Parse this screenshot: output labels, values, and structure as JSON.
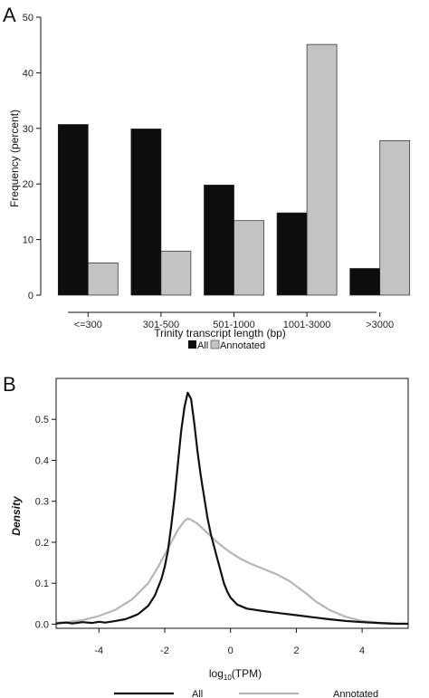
{
  "chart_data": [
    {
      "panel": "A",
      "type": "bar",
      "xlabel": "Trinity transcript length (bp)",
      "ylabel": "Frequency (percent)",
      "ylim": [
        0,
        50
      ],
      "yticks": [
        0,
        10,
        20,
        30,
        40,
        50
      ],
      "categories": [
        "<=300",
        "301-500",
        "501-1000",
        "1001-3000",
        ">3000"
      ],
      "series": [
        {
          "name": "All",
          "color": "#0d0d0d",
          "values": [
            30.7,
            29.9,
            19.8,
            14.8,
            4.8
          ]
        },
        {
          "name": "Annotated",
          "color": "#c2c4c4",
          "values": [
            5.8,
            7.9,
            13.4,
            45.1,
            27.8
          ]
        }
      ],
      "legend": "bottom"
    },
    {
      "panel": "B",
      "type": "line",
      "xlabel": "log10(TPM)",
      "ylabel": "Density",
      "xlim": [
        -5.3,
        5.4
      ],
      "ylim": [
        -0.01,
        0.6
      ],
      "xticks": [
        -4,
        -2,
        0,
        2,
        4
      ],
      "yticks": [
        0.0,
        0.1,
        0.2,
        0.3,
        0.4,
        0.5
      ],
      "ytick_labels": [
        "0.0",
        "0.1",
        "0.2",
        "0.3",
        "0.4",
        "0.5"
      ],
      "series": [
        {
          "name": "All",
          "color": "#111111",
          "x": [
            -5.3,
            -5.0,
            -4.8,
            -4.5,
            -4.2,
            -4.0,
            -3.8,
            -3.5,
            -3.2,
            -3.0,
            -2.8,
            -2.5,
            -2.3,
            -2.1,
            -2.0,
            -1.9,
            -1.8,
            -1.7,
            -1.6,
            -1.5,
            -1.4,
            -1.3,
            -1.2,
            -1.1,
            -1.0,
            -0.9,
            -0.8,
            -0.7,
            -0.6,
            -0.5,
            -0.4,
            -0.3,
            -0.2,
            -0.1,
            0.0,
            0.2,
            0.5,
            1.0,
            1.5,
            2.0,
            2.5,
            3.0,
            3.5,
            4.0,
            4.5,
            5.0,
            5.4
          ],
          "y": [
            0.002,
            0.004,
            0.002,
            0.005,
            0.003,
            0.006,
            0.004,
            0.008,
            0.012,
            0.018,
            0.025,
            0.045,
            0.07,
            0.11,
            0.14,
            0.18,
            0.24,
            0.31,
            0.39,
            0.47,
            0.53,
            0.565,
            0.55,
            0.49,
            0.42,
            0.36,
            0.31,
            0.26,
            0.22,
            0.19,
            0.16,
            0.13,
            0.1,
            0.08,
            0.065,
            0.048,
            0.038,
            0.032,
            0.027,
            0.022,
            0.017,
            0.012,
            0.008,
            0.005,
            0.003,
            0.001,
            0.001
          ]
        },
        {
          "name": "Annotated",
          "color": "#b5b7b7",
          "x": [
            -5.3,
            -5.0,
            -4.5,
            -4.0,
            -3.5,
            -3.0,
            -2.5,
            -2.2,
            -2.0,
            -1.8,
            -1.6,
            -1.4,
            -1.3,
            -1.2,
            -1.0,
            -0.8,
            -0.6,
            -0.4,
            -0.2,
            0.0,
            0.3,
            0.6,
            1.0,
            1.4,
            1.8,
            2.0,
            2.3,
            2.6,
            3.0,
            3.5,
            4.0,
            4.5,
            5.0,
            5.4
          ],
          "y": [
            0.003,
            0.005,
            0.01,
            0.02,
            0.035,
            0.06,
            0.1,
            0.14,
            0.17,
            0.2,
            0.23,
            0.252,
            0.258,
            0.255,
            0.245,
            0.23,
            0.215,
            0.2,
            0.187,
            0.175,
            0.16,
            0.148,
            0.135,
            0.122,
            0.105,
            0.093,
            0.075,
            0.055,
            0.035,
            0.018,
            0.008,
            0.004,
            0.002,
            0.001
          ]
        }
      ],
      "legend": "bottom"
    }
  ],
  "panels": {
    "a_letter": "A",
    "b_letter": "B"
  },
  "legend_a": {
    "all_label": "All",
    "annotated_label": "Annotated"
  },
  "axis_b": {
    "xlabel_base": "log",
    "xlabel_sub": "10",
    "xlabel_rest": "(TPM)"
  },
  "legend_b": {
    "all_label": "All",
    "annotated_label": "Annotated"
  }
}
